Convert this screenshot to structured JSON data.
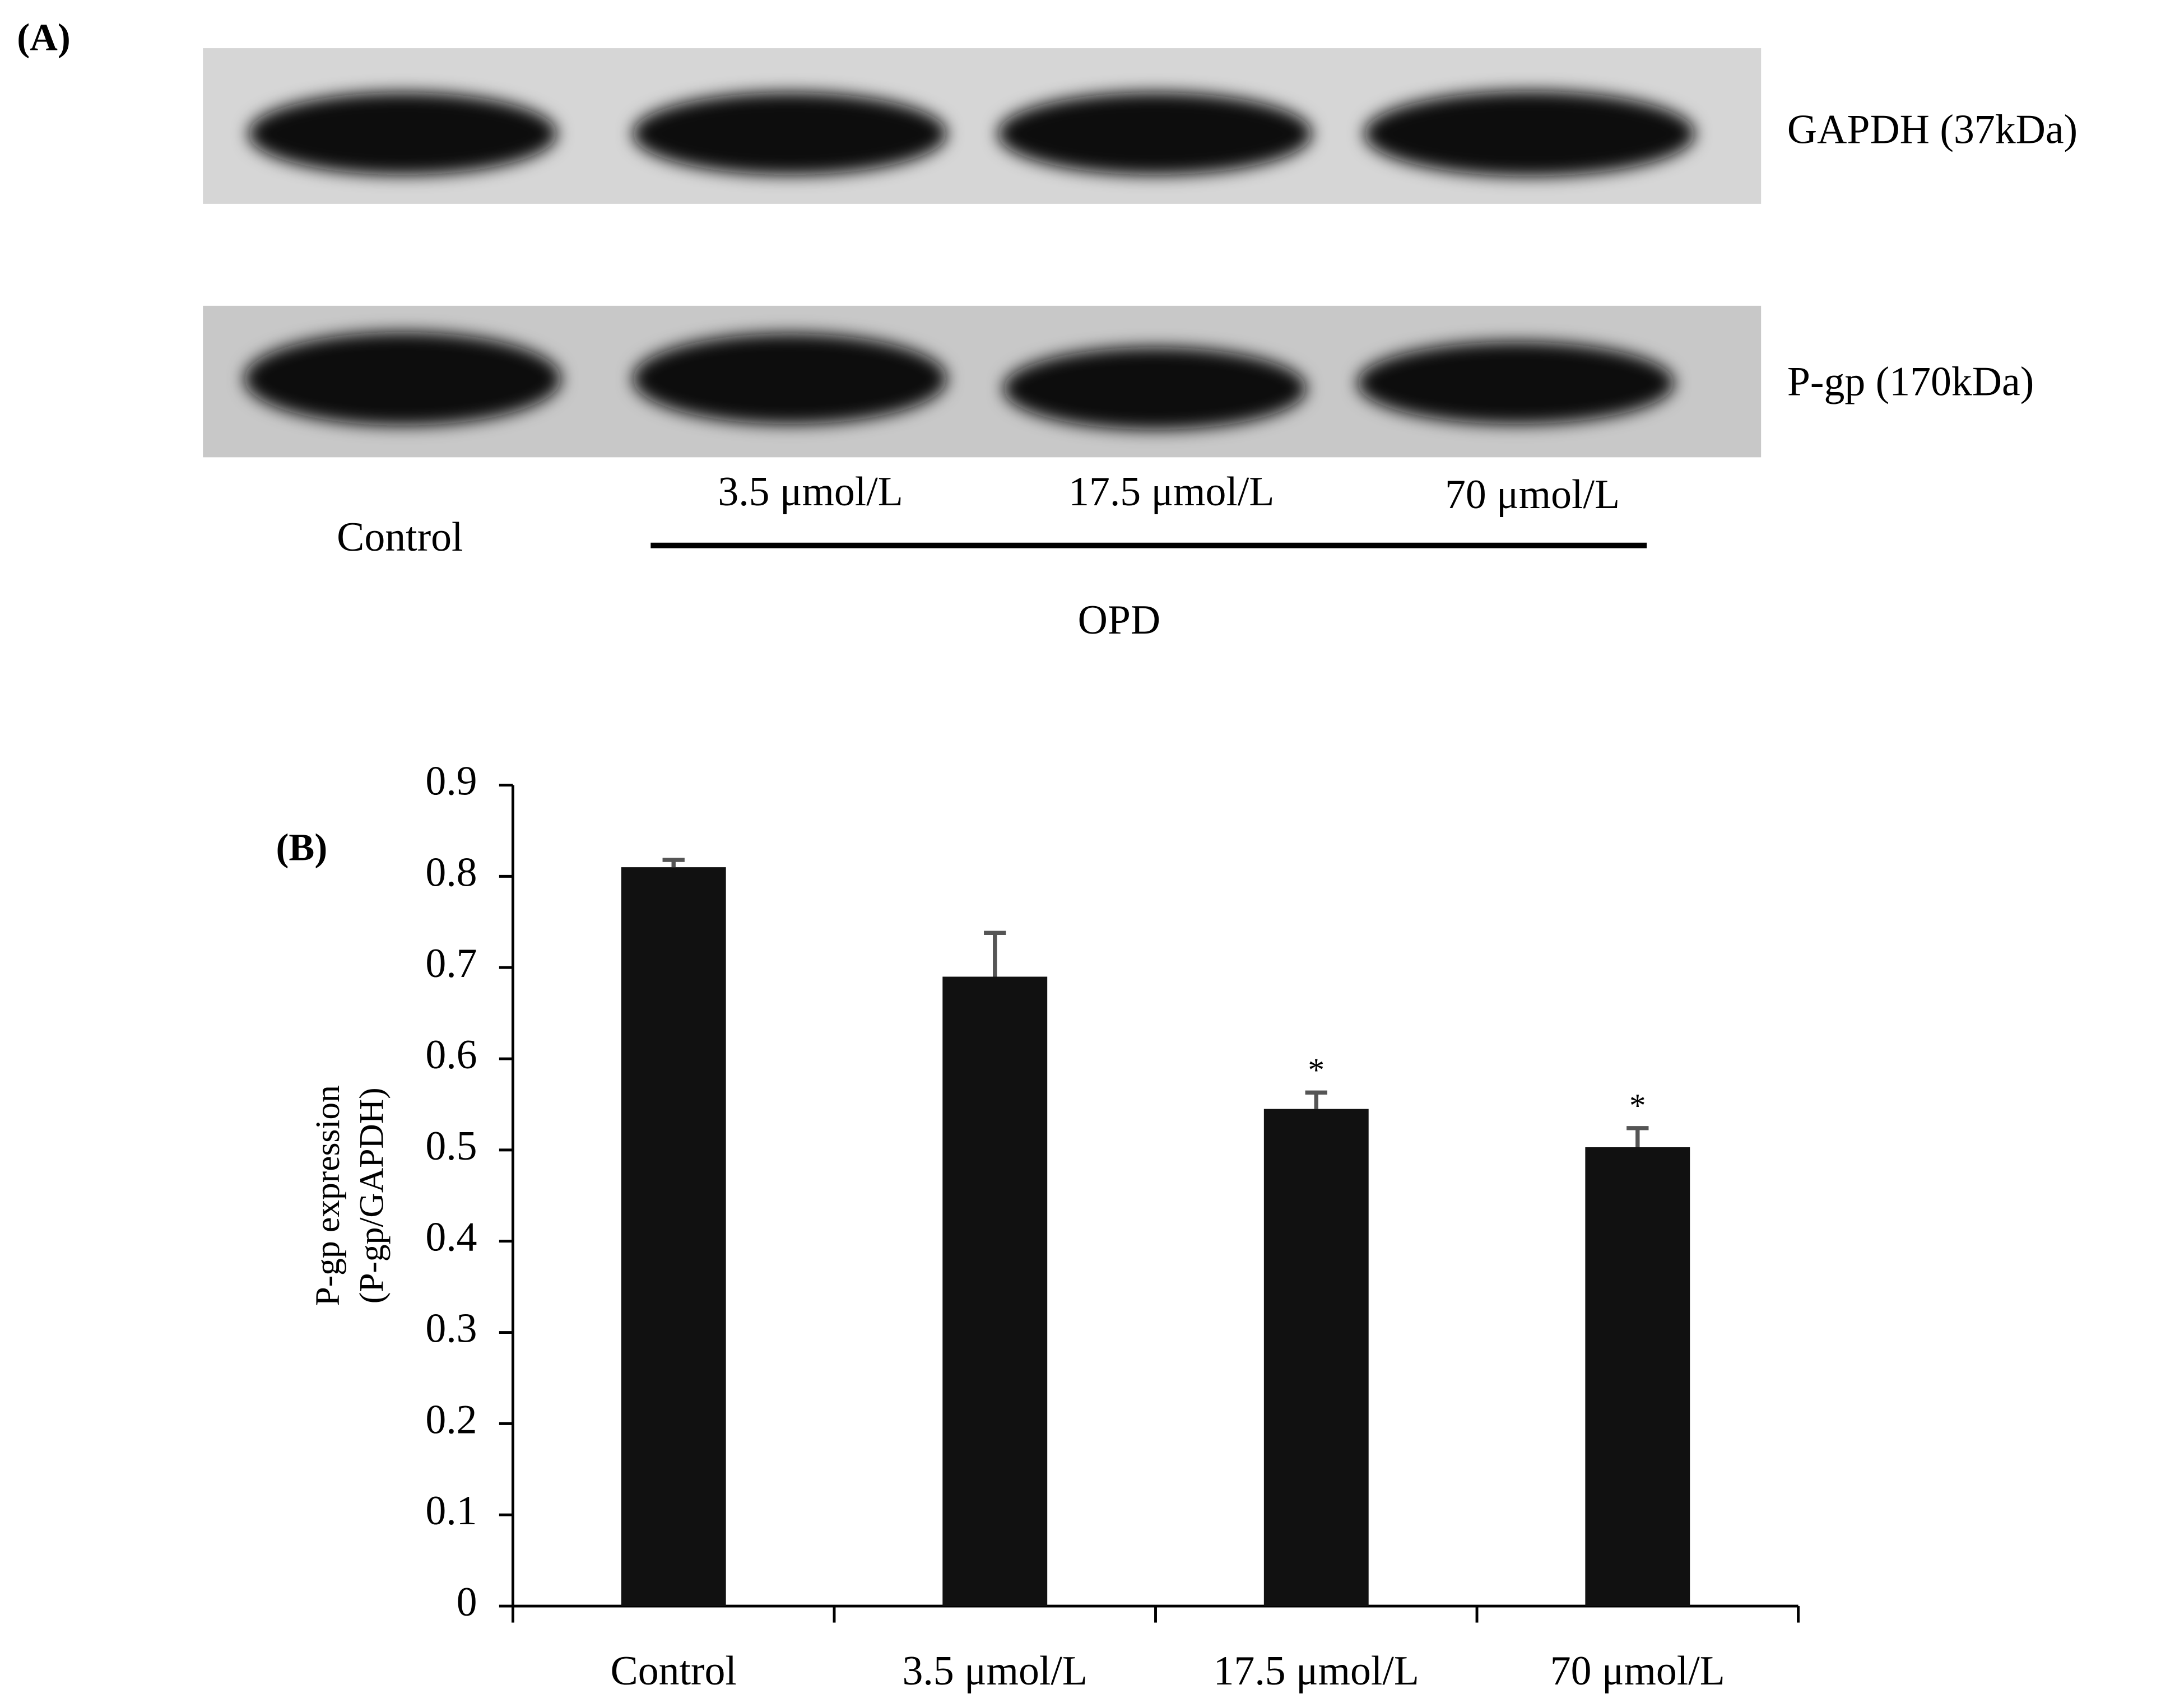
{
  "panel_a": {
    "label": "(A)",
    "bands": [
      "GAPDH (37kDa)",
      "P-gp (170kDa)"
    ],
    "lanes": [
      "Control",
      "3.5 μmol/L",
      "17.5 μmol/L",
      "70 μmol/L"
    ],
    "group_label": "OPD"
  },
  "chart_data": {
    "type": "bar",
    "panel_label": "(B)",
    "y_label": [
      "P-gp expression",
      "(P-gp/GAPDH)"
    ],
    "categories": [
      "Control",
      "3.5 μmol/L",
      "17.5 μmol/L",
      "70 μmol/L"
    ],
    "values": [
      0.81,
      0.69,
      0.545,
      0.503
    ],
    "errors": [
      0.008,
      0.048,
      0.018,
      0.021
    ],
    "significance": [
      null,
      null,
      "*",
      "*"
    ],
    "color": "#111111",
    "ylim": [
      0,
      0.9
    ],
    "yticks": [
      0,
      0.1,
      0.2,
      0.3,
      0.4,
      0.5,
      0.6,
      0.7,
      0.8,
      0.9
    ]
  }
}
